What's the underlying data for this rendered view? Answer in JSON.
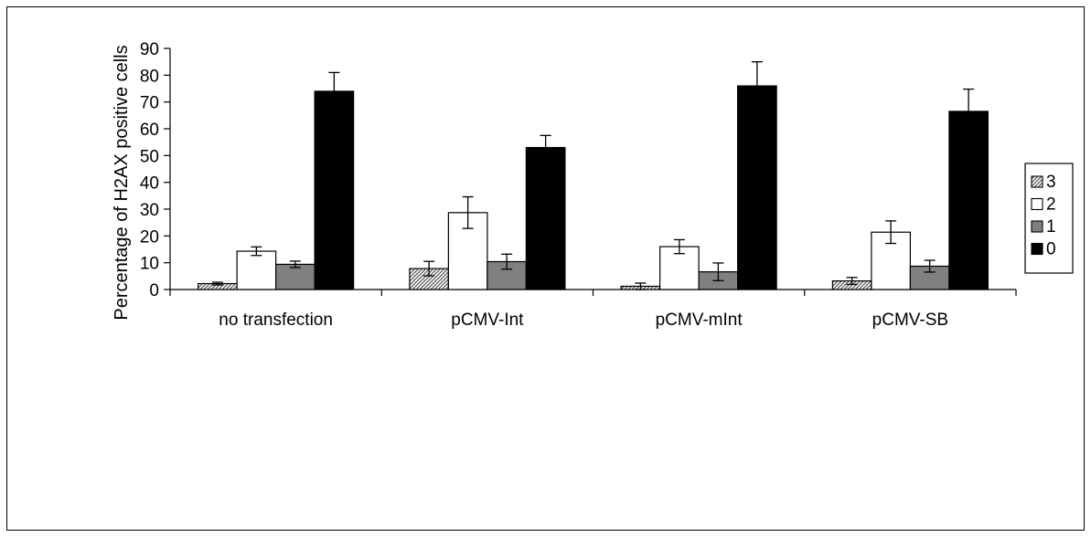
{
  "chart_data": {
    "type": "bar",
    "title": "",
    "xlabel": "",
    "ylabel": "Percentage of H2AX positive cells",
    "ylim": [
      0,
      90
    ],
    "yticks": [
      0,
      10,
      20,
      30,
      40,
      50,
      60,
      70,
      80,
      90
    ],
    "categories": [
      "no transfection",
      "pCMV-Int",
      "pCMV-mInt",
      "pCMV-SB"
    ],
    "series": [
      {
        "name": "3",
        "fill": "hatch",
        "values": [
          2.2,
          7.8,
          1.2,
          3.2
        ],
        "errors": [
          0.5,
          2.7,
          1.2,
          1.3
        ]
      },
      {
        "name": "2",
        "fill": "#ffffff",
        "values": [
          14.3,
          28.7,
          16.0,
          21.4
        ],
        "errors": [
          1.6,
          5.9,
          2.6,
          4.2
        ]
      },
      {
        "name": "1",
        "fill": "#808080",
        "values": [
          9.4,
          10.4,
          6.6,
          8.7
        ],
        "errors": [
          1.2,
          2.8,
          3.3,
          2.2
        ]
      },
      {
        "name": "0",
        "fill": "#000000",
        "values": [
          74.0,
          53.0,
          76.0,
          66.5
        ],
        "errors": [
          7.0,
          4.5,
          9.0,
          8.3
        ]
      }
    ],
    "grid": false,
    "legend_position": "right"
  }
}
